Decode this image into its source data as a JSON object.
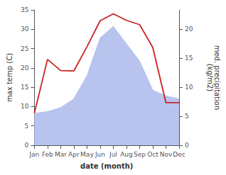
{
  "chart_data": {
    "type": "line",
    "categories": [
      "Jan",
      "Feb",
      "Mar",
      "Apr",
      "May",
      "Jun",
      "Jul",
      "Aug",
      "Sep",
      "Oct",
      "Nov",
      "Dec"
    ],
    "xlabel": "date (month)",
    "ylabel": "max temp (C)",
    "y2label": "med. precipitation\n(kg/m2)",
    "series": [
      {
        "type": "area",
        "axis": "y2",
        "color": "#b8c4ee",
        "values": [
          5.5,
          5.8,
          6.5,
          8.0,
          12.0,
          18.5,
          20.5,
          17.5,
          14.5,
          9.5,
          8.5,
          8.0
        ]
      },
      {
        "type": "line",
        "color": "#cc2222",
        "values": [
          8.3,
          22.2,
          19.3,
          19.2,
          25.5,
          32.2,
          34.0,
          32.3,
          31.2,
          25.3,
          11.0,
          11.0
        ]
      }
    ],
    "ylim": [
      0,
      35
    ],
    "yticks": [
      0,
      5,
      10,
      15,
      20,
      25,
      30,
      35
    ],
    "y2lim": [
      0,
      23.33
    ],
    "y2ticks": [
      0,
      5,
      10,
      15,
      20
    ],
    "grid": false
  }
}
